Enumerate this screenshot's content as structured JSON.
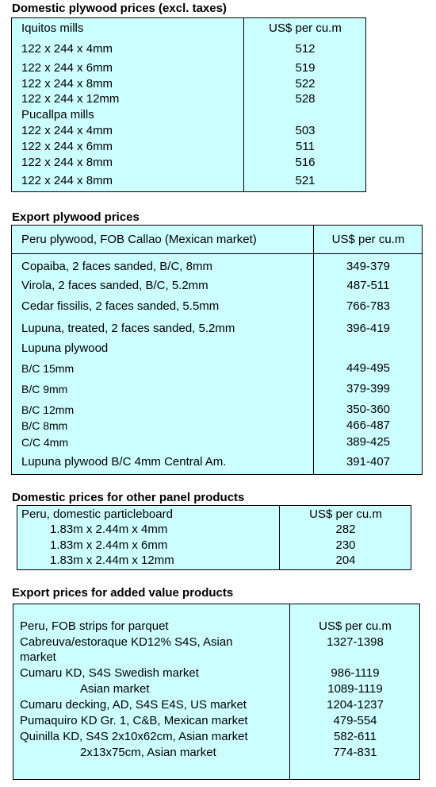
{
  "section1": {
    "title": "Domestic plywood prices (excl. taxes)",
    "header": {
      "label": "Iquitos mills",
      "unit": "US$ per cu.m"
    },
    "rows": [
      {
        "label": "122 x 244 x 4mm",
        "value": "512"
      },
      {
        "label": "122 x 244 x 6mm",
        "value": "519"
      },
      {
        "label": "122 x 244 x 8mm",
        "value": "522"
      },
      {
        "label": "122 x 244 x 12mm",
        "value": "528"
      },
      {
        "label": "Pucallpa mills",
        "value": ""
      },
      {
        "label": "122 x 244 x 4mm",
        "value": "503"
      },
      {
        "label": "122 x 244 x 6mm",
        "value": "511"
      },
      {
        "label": "122 x 244 x 8mm",
        "value": "516"
      },
      {
        "label": "122 x 244 x 8mm",
        "value": "521"
      }
    ]
  },
  "section2": {
    "title": "Export plywood prices",
    "header": {
      "label": "Peru plywood, FOB Callao (Mexican market)",
      "unit": "US$ per cu.m"
    },
    "rows": [
      {
        "label": "Copaiba, 2 faces sanded, B/C, 8mm",
        "value": "349-379"
      },
      {
        "label": "Virola, 2 faces sanded, B/C, 5.2mm",
        "value": "487-511"
      },
      {
        "label": "Cedar fissilis, 2 faces sanded, 5.5mm",
        "value": "766-783"
      },
      {
        "label": "Lupuna, treated, 2 faces sanded, 5.2mm",
        "value": "396-419"
      },
      {
        "label": "Lupuna plywood",
        "value": ""
      },
      {
        "label": "B/C 15mm",
        "value": "449-495"
      },
      {
        "label": "B/C 9mm",
        "value": "379-399"
      },
      {
        "label": "B/C 12mm",
        "value": "350-360"
      },
      {
        "label": "B/C 8mm",
        "value": "466-487"
      },
      {
        "label": "C/C 4mm",
        "value": "389-425"
      },
      {
        "label": "Lupuna plywood B/C 4mm Central Am.",
        "value": "391-407"
      }
    ]
  },
  "section3": {
    "title": "Domestic prices for other panel products",
    "header": {
      "label": "Peru, domestic particleboard",
      "unit": "US$ per cu.m"
    },
    "rows": [
      {
        "label": "1.83m x 2.44m x 4mm",
        "value": "282"
      },
      {
        "label": "1.83m x 2.44m x 6mm",
        "value": "230"
      },
      {
        "label": "1.83m x 2.44m x 12mm",
        "value": "204"
      }
    ]
  },
  "section4": {
    "title": "Export prices for added value products",
    "header": {
      "label": "Peru, FOB strips for parquet",
      "unit": "US$ per cu.m"
    },
    "rows": [
      {
        "label": "Cabreuva/estoraque KD12% S4S, Asian",
        "value": "1327-1398"
      },
      {
        "label": "market",
        "value": ""
      },
      {
        "label": "Cumaru KD, S4S     Swedish market",
        "value": "986-1119"
      },
      {
        "label": "Asian market",
        "value": "1089-1119"
      },
      {
        "label": "Cumaru decking, AD, S4S E4S,  US market",
        "value": "1204-1237"
      },
      {
        "label": "Pumaquiro KD Gr. 1, C&B,  Mexican market",
        "value": "479-554"
      },
      {
        "label": "Quinilla KD, S4S 2x10x62cm,  Asian market",
        "value": "582-611"
      },
      {
        "label": "2x13x75cm, Asian market",
        "value": "774-831"
      }
    ]
  }
}
